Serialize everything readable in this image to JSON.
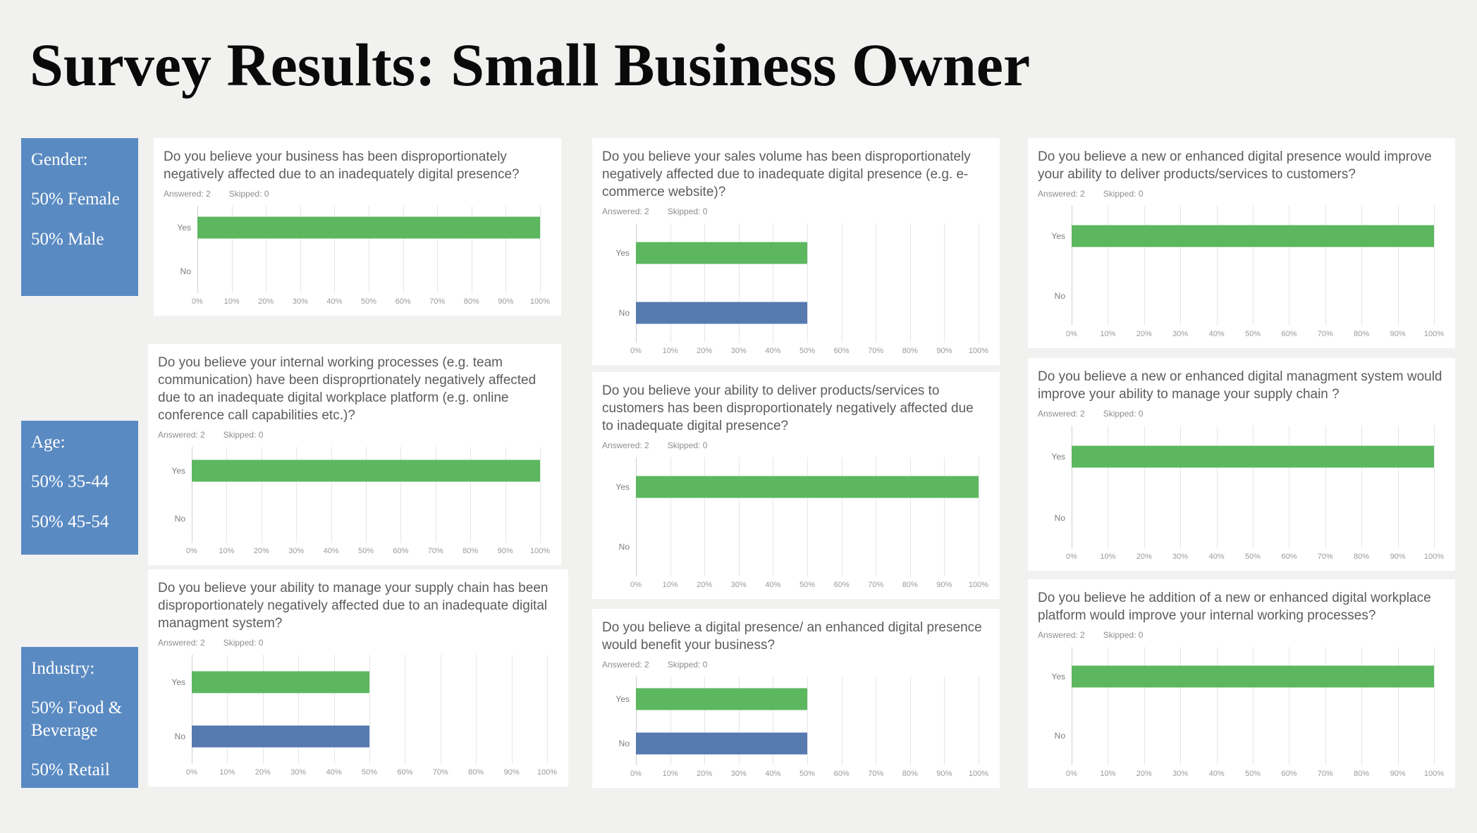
{
  "page": {
    "title": "Survey Results: Small Business Owner"
  },
  "colors": {
    "background": "#f1f1f0",
    "card": "#ffffff",
    "sidebar_box": "#5a8ac2",
    "bar_colors": [
      "#5cb75f",
      "#567ab0"
    ]
  },
  "sidebar": {
    "boxes": [
      {
        "heading": "Gender:",
        "line1": "50% Female",
        "line2": "50% Male"
      },
      {
        "heading": "Age:",
        "line1": "50% 35-44",
        "line2": "50% 45-54"
      },
      {
        "heading": "Industry:",
        "line1": "50%  Food & Beverage",
        "line2": "50% Retail"
      }
    ]
  },
  "chart_data": [
    {
      "type": "bar",
      "orientation": "horizontal",
      "question": "Do you believe your business has been disproportionately negatively affected due to an inadequately digital presence?",
      "answered_text": "Answered: 2",
      "skipped_text": "Skipped: 0",
      "categories": [
        "Yes",
        "No"
      ],
      "values": [
        100,
        0
      ],
      "xticks": [
        "0%",
        "10%",
        "20%",
        "30%",
        "40%",
        "50%",
        "60%",
        "70%",
        "80%",
        "90%",
        "100%"
      ],
      "xlim": [
        0,
        100
      ]
    },
    {
      "type": "bar",
      "orientation": "horizontal",
      "question": "Do you believe your internal working processes (e.g. team communication) have been disproprtionately negatively affected due to an inadequate digital workplace platform (e.g. online conference call capabilities etc.)?",
      "answered_text": "Answered: 2",
      "skipped_text": "Skipped: 0",
      "categories": [
        "Yes",
        "No"
      ],
      "values": [
        100,
        0
      ],
      "xticks": [
        "0%",
        "10%",
        "20%",
        "30%",
        "40%",
        "50%",
        "60%",
        "70%",
        "80%",
        "90%",
        "100%"
      ],
      "xlim": [
        0,
        100
      ]
    },
    {
      "type": "bar",
      "orientation": "horizontal",
      "question": "Do you believe your ability to manage your supply chain has been disproportionately negatively affected due to an inadequate digital managment system?",
      "answered_text": "Answered: 2",
      "skipped_text": "Skipped: 0",
      "categories": [
        "Yes",
        "No"
      ],
      "values": [
        50,
        50
      ],
      "xticks": [
        "0%",
        "10%",
        "20%",
        "30%",
        "40%",
        "50%",
        "60%",
        "70%",
        "80%",
        "90%",
        "100%"
      ],
      "xlim": [
        0,
        100
      ]
    },
    {
      "type": "bar",
      "orientation": "horizontal",
      "question": "Do you believe your sales volume has been disproportionately negatively affected due to inadequate digital presence (e.g. e-commerce website)?",
      "answered_text": "Answered: 2",
      "skipped_text": "Skipped: 0",
      "categories": [
        "Yes",
        "No"
      ],
      "values": [
        50,
        50
      ],
      "xticks": [
        "0%",
        "10%",
        "20%",
        "30%",
        "40%",
        "50%",
        "60%",
        "70%",
        "80%",
        "90%",
        "100%"
      ],
      "xlim": [
        0,
        100
      ]
    },
    {
      "type": "bar",
      "orientation": "horizontal",
      "question": "Do you believe your ability to deliver products/services to customers has been disproportionately negatively affected due to inadequate digital presence?",
      "answered_text": "Answered: 2",
      "skipped_text": "Skipped: 0",
      "categories": [
        "Yes",
        "No"
      ],
      "values": [
        100,
        0
      ],
      "xticks": [
        "0%",
        "10%",
        "20%",
        "30%",
        "40%",
        "50%",
        "60%",
        "70%",
        "80%",
        "90%",
        "100%"
      ],
      "xlim": [
        0,
        100
      ]
    },
    {
      "type": "bar",
      "orientation": "horizontal",
      "question": "Do you believe a digital presence/ an enhanced digital presence would benefit your business?",
      "answered_text": "Answered: 2",
      "skipped_text": "Skipped: 0",
      "categories": [
        "Yes",
        "No"
      ],
      "values": [
        50,
        50
      ],
      "xticks": [
        "0%",
        "10%",
        "20%",
        "30%",
        "40%",
        "50%",
        "60%",
        "70%",
        "80%",
        "90%",
        "100%"
      ],
      "xlim": [
        0,
        100
      ]
    },
    {
      "type": "bar",
      "orientation": "horizontal",
      "question": "Do you believe a new or enhanced digital presence would improve your ability to deliver products/services to customers?",
      "answered_text": "Answered: 2",
      "skipped_text": "Skipped: 0",
      "categories": [
        "Yes",
        "No"
      ],
      "values": [
        100,
        0
      ],
      "xticks": [
        "0%",
        "10%",
        "20%",
        "30%",
        "40%",
        "50%",
        "60%",
        "70%",
        "80%",
        "90%",
        "100%"
      ],
      "xlim": [
        0,
        100
      ]
    },
    {
      "type": "bar",
      "orientation": "horizontal",
      "question": "Do you believe a new or enhanced digital managment system would improve your ability to manage your supply chain ?",
      "answered_text": "Answered: 2",
      "skipped_text": "Skipped: 0",
      "categories": [
        "Yes",
        "No"
      ],
      "values": [
        100,
        0
      ],
      "xticks": [
        "0%",
        "10%",
        "20%",
        "30%",
        "40%",
        "50%",
        "60%",
        "70%",
        "80%",
        "90%",
        "100%"
      ],
      "xlim": [
        0,
        100
      ]
    },
    {
      "type": "bar",
      "orientation": "horizontal",
      "question": "Do you believe he addition of a new or enhanced digital workplace platform would improve your internal working processes?",
      "answered_text": "Answered: 2",
      "skipped_text": "Skipped: 0",
      "categories": [
        "Yes",
        "No"
      ],
      "values": [
        100,
        0
      ],
      "xticks": [
        "0%",
        "10%",
        "20%",
        "30%",
        "40%",
        "50%",
        "60%",
        "70%",
        "80%",
        "90%",
        "100%"
      ],
      "xlim": [
        0,
        100
      ]
    }
  ]
}
